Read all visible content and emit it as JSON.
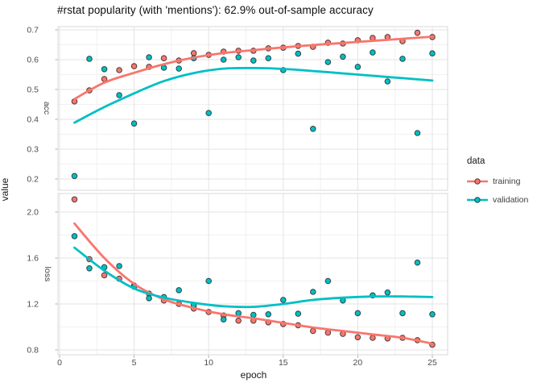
{
  "title": "#rstat popularity (with 'mentions'): 62.9% out-of-sample accuracy",
  "x_axis": {
    "title": "epoch",
    "ticks": [
      "0",
      "5",
      "10",
      "15",
      "20",
      "25"
    ],
    "tick_values": [
      0,
      5,
      10,
      15,
      20,
      25
    ]
  },
  "y_axis": {
    "title": "value"
  },
  "legend": {
    "title": "data",
    "items": [
      {
        "label": "training",
        "color": "#F8766D"
      },
      {
        "label": "validation",
        "color": "#00BFC4"
      }
    ]
  },
  "chart_data": [
    {
      "type": "scatter",
      "facet": "acc",
      "title": "accuracy by epoch with loess smooth",
      "xlabel": "epoch",
      "ylabel": "value",
      "xlim": [
        0,
        25
      ],
      "ylim": [
        0.16,
        0.71
      ],
      "grid": "on",
      "legend_position": "right",
      "y_ticks": [
        "0.7",
        "0.6",
        "0.5",
        "0.4",
        "0.3",
        "0.2"
      ],
      "y_tick_values": [
        0.7,
        0.6,
        0.5,
        0.4,
        0.3,
        0.2
      ],
      "x": [
        1,
        2,
        3,
        4,
        5,
        6,
        7,
        8,
        9,
        10,
        11,
        12,
        13,
        14,
        15,
        16,
        17,
        18,
        19,
        20,
        21,
        22,
        23,
        24,
        25
      ],
      "series": [
        {
          "name": "training",
          "color": "#F8766D",
          "values": [
            0.46,
            0.497,
            0.535,
            0.565,
            0.578,
            0.576,
            0.605,
            0.597,
            0.622,
            0.616,
            0.627,
            0.63,
            0.63,
            0.638,
            0.64,
            0.646,
            0.643,
            0.657,
            0.654,
            0.665,
            0.673,
            0.676,
            0.662,
            0.69,
            0.676
          ],
          "smooth_x": [
            1,
            3,
            5,
            7,
            9,
            11,
            13,
            15,
            17,
            19,
            21,
            23,
            25
          ],
          "smooth_y": [
            0.468,
            0.523,
            0.556,
            0.585,
            0.607,
            0.622,
            0.632,
            0.641,
            0.649,
            0.656,
            0.663,
            0.67,
            0.677
          ]
        },
        {
          "name": "validation",
          "color": "#00BFC4",
          "values": [
            0.21,
            0.603,
            0.568,
            0.481,
            0.386,
            0.608,
            0.573,
            0.57,
            0.605,
            0.421,
            0.6,
            0.608,
            0.597,
            0.605,
            0.565,
            0.62,
            0.368,
            0.592,
            0.61,
            0.576,
            0.624,
            0.527,
            0.603,
            0.354,
            0.621
          ],
          "smooth_x": [
            1,
            3,
            5,
            7,
            9,
            11,
            13,
            15,
            17,
            19,
            21,
            23,
            25
          ],
          "smooth_y": [
            0.389,
            0.441,
            0.487,
            0.528,
            0.555,
            0.57,
            0.572,
            0.569,
            0.562,
            0.554,
            0.546,
            0.538,
            0.53
          ]
        }
      ]
    },
    {
      "type": "scatter",
      "facet": "loss",
      "title": "loss by epoch with loess smooth",
      "xlabel": "epoch",
      "ylabel": "value",
      "xlim": [
        0,
        25
      ],
      "ylim": [
        0.76,
        2.16
      ],
      "grid": "on",
      "legend_position": "right",
      "y_ticks": [
        "2.0",
        "1.6",
        "1.2",
        "0.8"
      ],
      "y_tick_values": [
        2.0,
        1.6,
        1.2,
        0.8
      ],
      "x": [
        1,
        2,
        3,
        4,
        5,
        6,
        7,
        8,
        9,
        10,
        11,
        12,
        13,
        14,
        15,
        16,
        17,
        18,
        19,
        20,
        21,
        22,
        23,
        24,
        25
      ],
      "series": [
        {
          "name": "training",
          "color": "#F8766D",
          "values": [
            2.11,
            1.59,
            1.45,
            1.42,
            1.36,
            1.29,
            1.23,
            1.2,
            1.16,
            1.13,
            1.1,
            1.055,
            1.055,
            1.04,
            1.025,
            1.015,
            0.965,
            0.95,
            0.94,
            0.91,
            0.905,
            0.9,
            0.905,
            0.885,
            0.845
          ],
          "smooth_x": [
            1,
            3,
            5,
            7,
            9,
            11,
            13,
            15,
            17,
            19,
            21,
            23,
            25
          ],
          "smooth_y": [
            1.9,
            1.6,
            1.375,
            1.24,
            1.165,
            1.11,
            1.075,
            1.035,
            0.995,
            0.965,
            0.935,
            0.905,
            0.855
          ]
        },
        {
          "name": "validation",
          "color": "#00BFC4",
          "values": [
            1.79,
            1.51,
            1.52,
            1.53,
            1.35,
            1.25,
            1.26,
            1.32,
            1.19,
            1.4,
            1.065,
            1.12,
            1.105,
            1.11,
            1.235,
            1.115,
            1.305,
            1.4,
            1.23,
            1.12,
            1.275,
            1.3,
            1.12,
            1.56,
            1.11
          ],
          "smooth_x": [
            1,
            3,
            5,
            7,
            9,
            11,
            13,
            15,
            17,
            19,
            21,
            23,
            25
          ],
          "smooth_y": [
            1.69,
            1.49,
            1.335,
            1.255,
            1.21,
            1.18,
            1.175,
            1.2,
            1.235,
            1.255,
            1.265,
            1.265,
            1.26
          ]
        }
      ]
    }
  ]
}
